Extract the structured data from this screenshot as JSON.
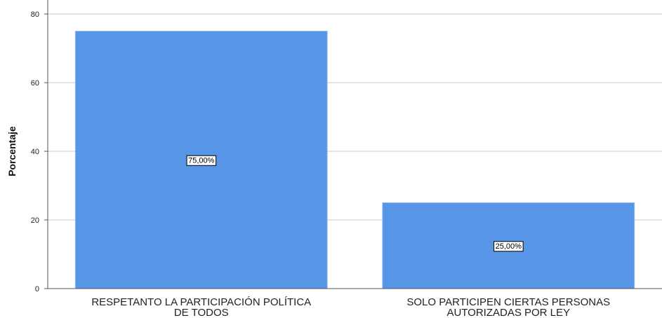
{
  "chart_data": {
    "type": "bar",
    "categories": [
      [
        "RESPETANTO LA PARTICIPACIÓN POLÍTICA",
        "DE TODOS"
      ],
      [
        "SOLO PARTICIPEN CIERTAS PERSONAS",
        "AUTORIZADAS POR LEY"
      ]
    ],
    "values": [
      75,
      25
    ],
    "data_labels": [
      "75,00%",
      "25,00%"
    ],
    "ylabel": "Porcentaje",
    "xlabel": "",
    "ylim": [
      0,
      80
    ],
    "yticks": [
      0,
      20,
      40,
      60,
      80
    ],
    "grid": "horizontal",
    "bar_color": "#5795e6",
    "bar_edge_color": "#8fb6ec"
  }
}
